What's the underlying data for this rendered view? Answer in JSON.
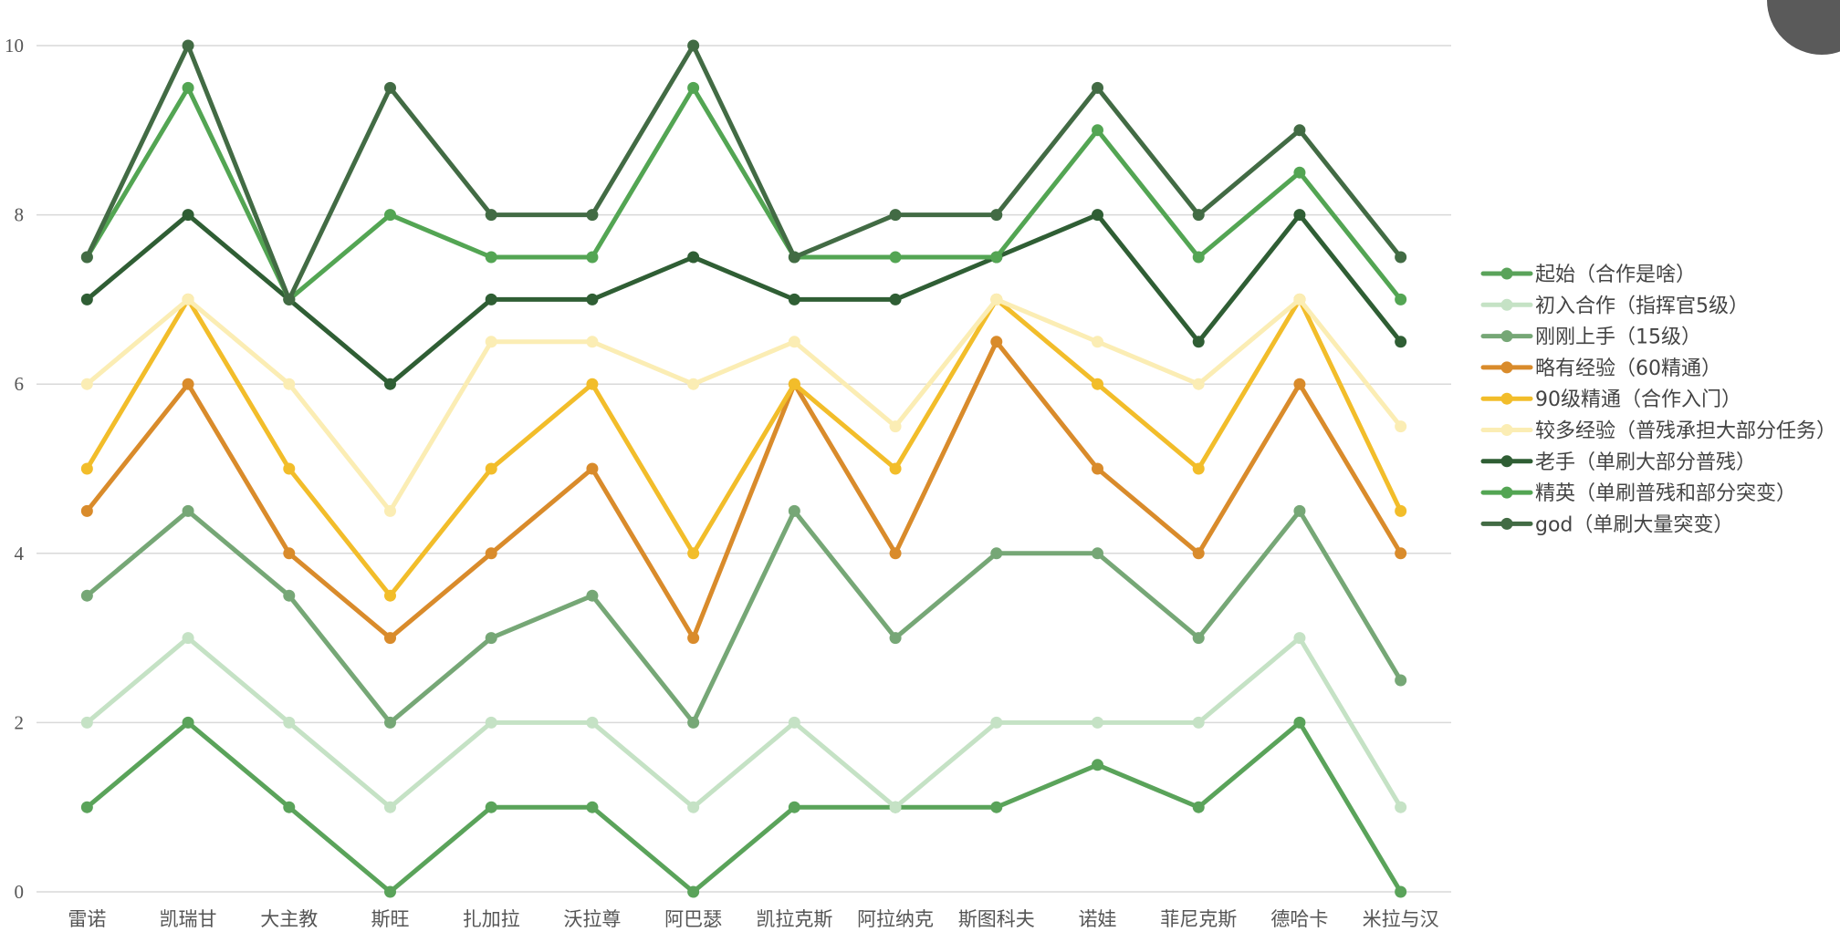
{
  "chart_data": {
    "type": "line",
    "title": "",
    "xlabel": "",
    "ylabel": "",
    "ylim": [
      0,
      10
    ],
    "yticks": [
      "0",
      "2",
      "4",
      "6",
      "8",
      "10"
    ],
    "grid": true,
    "legend_position": "right",
    "categories": [
      "雷诺",
      "凯瑞甘",
      "大主教",
      "斯旺",
      "扎加拉",
      "沃拉尊",
      "阿巴瑟",
      "凯拉克斯",
      "阿拉纳克",
      "斯图科夫",
      "诺娃",
      "菲尼克斯",
      "德哈卡",
      "米拉与汉"
    ],
    "series": [
      {
        "name": "起始（合作是啥）",
        "color": "#5aa35a",
        "values": [
          1,
          2,
          1,
          0,
          1,
          1,
          0,
          1,
          1,
          1,
          1.5,
          1,
          2,
          0
        ]
      },
      {
        "name": "初入合作（指挥官5级）",
        "color": "#c5e2c5",
        "values": [
          2,
          3,
          2,
          1,
          2,
          2,
          1,
          2,
          1,
          2,
          2,
          2,
          3,
          1
        ]
      },
      {
        "name": "刚刚上手（15级）",
        "color": "#76a776",
        "values": [
          3.5,
          4.5,
          3.5,
          2,
          3,
          3.5,
          2,
          4.5,
          3,
          4,
          4,
          3,
          4.5,
          2.5
        ]
      },
      {
        "name": "略有经验（60精通）",
        "color": "#d98b2b",
        "values": [
          4.5,
          6,
          4,
          3,
          4,
          5,
          3,
          6,
          4,
          6.5,
          5,
          4,
          6,
          4
        ]
      },
      {
        "name": "90级精通（合作入门）",
        "color": "#f2bd2a",
        "values": [
          5,
          7,
          5,
          3.5,
          5,
          6,
          4,
          6,
          5,
          7,
          6,
          5,
          7,
          4.5
        ]
      },
      {
        "name": "较多经验（普残承担大部分任务）",
        "color": "#fbedb4",
        "values": [
          6,
          7,
          6,
          4.5,
          6.5,
          6.5,
          6,
          6.5,
          5.5,
          7,
          6.5,
          6,
          7,
          5.5
        ]
      },
      {
        "name": "老手（单刷大部分普残）",
        "color": "#2f5e34",
        "values": [
          7,
          8,
          7,
          6,
          7,
          7,
          7.5,
          7,
          7,
          7.5,
          8,
          6.5,
          8,
          6.5
        ]
      },
      {
        "name": "精英（单刷普残和部分突变）",
        "color": "#53a553",
        "values": [
          7.5,
          9.5,
          7,
          8,
          7.5,
          7.5,
          9.5,
          7.5,
          7.5,
          7.5,
          9,
          7.5,
          8.5,
          7
        ]
      },
      {
        "name": "god（单刷大量突变）",
        "color": "#426b44",
        "values": [
          7.5,
          10,
          7,
          9.5,
          8,
          8,
          10,
          7.5,
          8,
          8,
          9.5,
          8,
          9,
          7.5
        ]
      }
    ]
  }
}
